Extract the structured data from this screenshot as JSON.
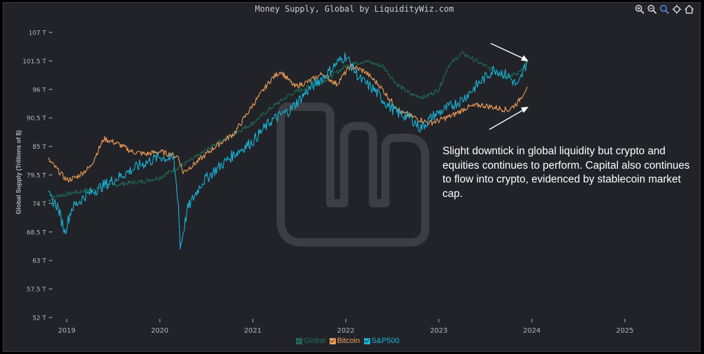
{
  "title": "Money Supply, Global by LiquidityWiz.com",
  "toolbar": [
    {
      "name": "zoom-in-icon"
    },
    {
      "name": "zoom-out-icon"
    },
    {
      "name": "zoom-select-icon"
    },
    {
      "name": "pan-icon"
    },
    {
      "name": "home-icon"
    }
  ],
  "annotation": "Slight downtick in global liquidity but crypto and equities continues to perform. Capital also continues to flow into crypto, evidenced by stablecoin market cap.",
  "colors": {
    "background": "#212328",
    "global": "#1f6e57",
    "bitcoin": "#f5a05a",
    "sp500": "#19b5d8",
    "axis_text": "#b4b8bd",
    "watermark": "#3b3e45"
  },
  "chart_data": {
    "type": "line",
    "title": "Money Supply, Global by LiquidityWiz.com",
    "xlabel": "",
    "ylabel": "Global Supply (Trillions of $)",
    "xlim": [
      2018.8,
      2025.6
    ],
    "ylim": [
      52,
      107
    ],
    "grid": false,
    "legend_position": "bottom-center",
    "x_ticks": [
      {
        "value": 2019,
        "label": "2019"
      },
      {
        "value": 2020,
        "label": "2020"
      },
      {
        "value": 2021,
        "label": "2021"
      },
      {
        "value": 2022,
        "label": "2022"
      },
      {
        "value": 2023,
        "label": "2023"
      },
      {
        "value": 2024,
        "label": "2024"
      },
      {
        "value": 2025,
        "label": "2025"
      }
    ],
    "y_ticks": [
      {
        "value": 107,
        "label": "107 T"
      },
      {
        "value": 101.5,
        "label": "101.5 T"
      },
      {
        "value": 96,
        "label": "96 T"
      },
      {
        "value": 90.5,
        "label": "90.5 T"
      },
      {
        "value": 85,
        "label": "85 T"
      },
      {
        "value": 79.5,
        "label": "79.5 T"
      },
      {
        "value": 74,
        "label": "74 T"
      },
      {
        "value": 68.5,
        "label": "68.5 T"
      },
      {
        "value": 63,
        "label": "63 T"
      },
      {
        "value": 57.5,
        "label": "57.5 T"
      },
      {
        "value": 52,
        "label": "52 T"
      }
    ],
    "series": [
      {
        "name": "Global",
        "x": [
          2018.8,
          2018.9,
          2019.0,
          2019.2,
          2019.4,
          2019.6,
          2019.8,
          2020.0,
          2020.15,
          2020.25,
          2020.4,
          2020.6,
          2020.8,
          2021.0,
          2021.2,
          2021.4,
          2021.6,
          2021.8,
          2022.0,
          2022.2,
          2022.4,
          2022.55,
          2022.7,
          2022.85,
          2023.0,
          2023.1,
          2023.25,
          2023.4,
          2023.55,
          2023.7,
          2023.85,
          2023.95
        ],
        "values": [
          74.5,
          75.5,
          75.8,
          76.5,
          77.2,
          77.8,
          78.2,
          79.0,
          80.5,
          81.5,
          83.0,
          85.5,
          87.5,
          89.5,
          92.5,
          95.0,
          96.5,
          98.0,
          100.5,
          101.5,
          100.5,
          97.0,
          95.0,
          94.5,
          96.0,
          100.5,
          103.0,
          101.5,
          100.0,
          98.5,
          99.0,
          101.5
        ]
      },
      {
        "name": "Bitcoin",
        "x": [
          2018.8,
          2018.9,
          2019.0,
          2019.1,
          2019.25,
          2019.4,
          2019.55,
          2019.7,
          2019.85,
          2020.0,
          2020.2,
          2020.25,
          2020.4,
          2020.6,
          2020.8,
          2021.0,
          2021.2,
          2021.3,
          2021.45,
          2021.6,
          2021.75,
          2021.9,
          2022.05,
          2022.2,
          2022.35,
          2022.5,
          2022.6,
          2022.75,
          2022.9,
          2023.0,
          2023.15,
          2023.3,
          2023.45,
          2023.6,
          2023.75,
          2023.85,
          2023.95
        ],
        "values": [
          82.5,
          80.5,
          78.5,
          79.0,
          81.0,
          86.5,
          85.5,
          84.0,
          83.5,
          84.0,
          83.0,
          80.0,
          82.0,
          85.0,
          87.5,
          93.0,
          98.0,
          99.5,
          96.5,
          97.5,
          99.0,
          97.0,
          100.5,
          99.5,
          97.0,
          93.5,
          91.5,
          90.5,
          89.5,
          90.0,
          91.0,
          92.5,
          93.0,
          92.5,
          92.0,
          93.5,
          96.5
        ]
      },
      {
        "name": "S&P500",
        "x": [
          2018.8,
          2018.9,
          2018.98,
          2019.05,
          2019.2,
          2019.4,
          2019.6,
          2019.8,
          2020.0,
          2020.15,
          2020.2,
          2020.22,
          2020.3,
          2020.45,
          2020.6,
          2020.8,
          2021.0,
          2021.2,
          2021.4,
          2021.6,
          2021.8,
          2021.9,
          2022.0,
          2022.15,
          2022.3,
          2022.45,
          2022.55,
          2022.7,
          2022.8,
          2022.95,
          2023.1,
          2023.25,
          2023.45,
          2023.6,
          2023.75,
          2023.85,
          2023.95
        ],
        "values": [
          75.5,
          73.5,
          68.5,
          73.0,
          75.5,
          77.5,
          79.5,
          81.5,
          83.0,
          82.5,
          74.0,
          65.5,
          73.0,
          78.0,
          80.5,
          83.5,
          86.0,
          90.0,
          92.0,
          96.0,
          99.0,
          101.0,
          102.5,
          98.0,
          96.0,
          93.0,
          91.5,
          90.5,
          88.5,
          91.0,
          92.5,
          94.0,
          97.5,
          100.0,
          98.5,
          96.5,
          101.5
        ]
      }
    ]
  }
}
